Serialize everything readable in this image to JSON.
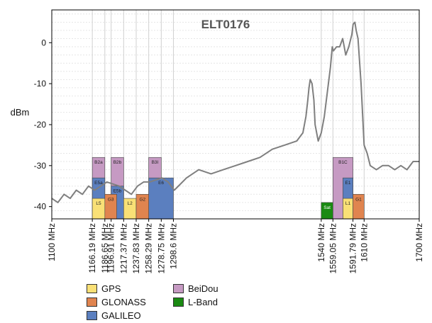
{
  "chart_data": {
    "type": "line",
    "title": "ELT0176",
    "ylabel": "dBm",
    "xlim": [
      1100,
      1700
    ],
    "ylim": [
      -43,
      8
    ],
    "y_ticks": [
      0,
      -10,
      -20,
      -30,
      -40
    ],
    "grid": true,
    "x_ticks": [
      {
        "value": 1100,
        "label": "1100 MHz"
      },
      {
        "value": 1166.19,
        "label": "1166.19 MHz"
      },
      {
        "value": 1186.65,
        "label": "1186.65 MHz"
      },
      {
        "value": 1196.91,
        "label": "1196.91 MHz"
      },
      {
        "value": 1217.37,
        "label": "1217.37 MHz"
      },
      {
        "value": 1237.83,
        "label": "1237.83 MHz"
      },
      {
        "value": 1258.29,
        "label": "1258.29 MHz"
      },
      {
        "value": 1278.75,
        "label": "1278.75 MHz"
      },
      {
        "value": 1298.6,
        "label": "1298.6 MHz"
      },
      {
        "value": 1540,
        "label": "1540 MHz"
      },
      {
        "value": 1559.05,
        "label": "1559.05 MHz"
      },
      {
        "value": 1591.79,
        "label": "1591.79 MHz"
      },
      {
        "value": 1610,
        "label": "1610 MHz"
      },
      {
        "value": 1700,
        "label": "1700 MHz"
      }
    ],
    "series": [
      {
        "color": "#7f7f7f",
        "x": [
          1100,
          1110,
          1120,
          1130,
          1140,
          1150,
          1160,
          1170,
          1180,
          1190,
          1200,
          1210,
          1220,
          1230,
          1240,
          1250,
          1260,
          1270,
          1280,
          1290,
          1300,
          1320,
          1340,
          1360,
          1380,
          1400,
          1420,
          1440,
          1460,
          1480,
          1500,
          1510,
          1515,
          1518,
          1520,
          1522,
          1525,
          1528,
          1530,
          1535,
          1540,
          1545,
          1550,
          1555,
          1558,
          1560,
          1565,
          1570,
          1575,
          1580,
          1585,
          1590,
          1592,
          1595,
          1597,
          1600,
          1605,
          1610,
          1615,
          1620,
          1630,
          1640,
          1650,
          1660,
          1670,
          1680,
          1690,
          1700
        ],
        "y": [
          -38,
          -39,
          -37,
          -38,
          -36,
          -37,
          -35,
          -36,
          -35,
          -34,
          -34.5,
          -35,
          -36,
          -37,
          -35,
          -34,
          -34,
          -33.5,
          -33,
          -34,
          -36,
          -33,
          -31,
          -32,
          -31,
          -30,
          -29,
          -28,
          -26,
          -25,
          -24,
          -22,
          -18,
          -14,
          -11,
          -9,
          -10,
          -14,
          -20,
          -24,
          -22,
          -18,
          -12,
          -6,
          -1,
          -2,
          -1,
          -1,
          1,
          -3,
          -1,
          2,
          4.5,
          5,
          3,
          1,
          -10,
          -25,
          -27,
          -30,
          -31,
          -30,
          -30,
          -31,
          -30,
          -31,
          -29,
          -29
        ]
      }
    ],
    "bands": [
      {
        "system": "BeiDou",
        "label": "B2a",
        "x0": 1166.19,
        "x1": 1186.65,
        "top": -28
      },
      {
        "system": "BeiDou",
        "label": "B2b",
        "x0": 1196.91,
        "x1": 1217.37,
        "top": -28
      },
      {
        "system": "BeiDou",
        "label": "B3I",
        "x0": 1258.29,
        "x1": 1278.75,
        "top": -28
      },
      {
        "system": "BeiDou",
        "label": "B1C",
        "x0": 1559.05,
        "x1": 1591.79,
        "top": -28
      },
      {
        "system": "GALILEO",
        "label": "E5a",
        "x0": 1166.19,
        "x1": 1186.65,
        "top": -33
      },
      {
        "system": "GALILEO",
        "label": "E5b",
        "x0": 1196.91,
        "x1": 1217.37,
        "top": -35
      },
      {
        "system": "GALILEO",
        "label": "E6",
        "x0": 1258.29,
        "x1": 1298.6,
        "top": -33
      },
      {
        "system": "GALILEO",
        "label": "E1",
        "x0": 1575.42,
        "x1": 1591.79,
        "top": -33
      },
      {
        "system": "GPS",
        "label": "L5",
        "x0": 1166.19,
        "x1": 1186.65,
        "top": -38
      },
      {
        "system": "GPS",
        "label": "L2",
        "x0": 1217.37,
        "x1": 1237.83,
        "top": -38
      },
      {
        "system": "GPS",
        "label": "L1",
        "x0": 1575.42,
        "x1": 1591.79,
        "top": -38
      },
      {
        "system": "GLONASS",
        "label": "G3",
        "x0": 1186.65,
        "x1": 1206.0,
        "top": -37
      },
      {
        "system": "GLONASS",
        "label": "G2",
        "x0": 1237.83,
        "x1": 1258.29,
        "top": -37
      },
      {
        "system": "GLONASS",
        "label": "G1",
        "x0": 1591.79,
        "x1": 1610,
        "top": -37
      },
      {
        "system": "L-Band",
        "label": "Sat",
        "x0": 1540,
        "x1": 1559.05,
        "top": -39
      }
    ]
  },
  "legend": {
    "items": [
      {
        "label": "GPS",
        "color": "#f9e076"
      },
      {
        "label": "GLONASS",
        "color": "#e0844f"
      },
      {
        "label": "GALILEO",
        "color": "#5b7fbf"
      },
      {
        "label": "BeiDou",
        "color": "#c69ac3"
      },
      {
        "label": "L-Band",
        "color": "#1a8a12"
      }
    ]
  },
  "colors": {
    "GPS": "#f9e076",
    "GLONASS": "#e0844f",
    "GALILEO": "#5b7fbf",
    "BeiDou": "#c69ac3",
    "L-Band": "#1a8a12",
    "trace": "#7f7f7f",
    "frame": "#000000",
    "grid": "#dcdcdc"
  }
}
